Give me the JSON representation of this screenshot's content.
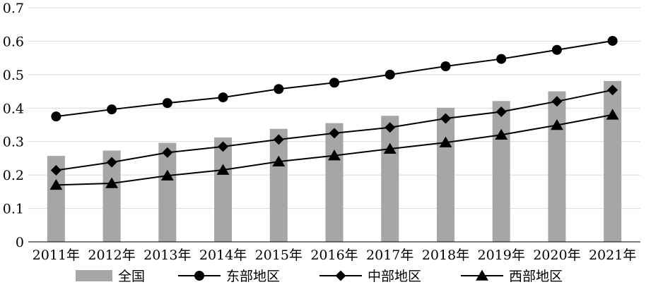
{
  "chart_data": {
    "type": "bar",
    "title": "",
    "xlabel": "",
    "ylabel": "",
    "categories": [
      "2011年",
      "2012年",
      "2013年",
      "2014年",
      "2015年",
      "2016年",
      "2017年",
      "2018年",
      "2019年",
      "2020年",
      "2021年"
    ],
    "ylim": [
      0,
      0.7
    ],
    "yticks": [
      "0",
      "0.1",
      "0.2",
      "0.3",
      "0.4",
      "0.5",
      "0.6",
      "0.7"
    ],
    "grid": true,
    "legend": "bottom",
    "series": [
      {
        "name": "全国",
        "kind": "bar",
        "marker": "none",
        "color": "#a6a6a6",
        "values": [
          0.257,
          0.273,
          0.296,
          0.312,
          0.338,
          0.355,
          0.377,
          0.401,
          0.421,
          0.45,
          0.481
        ]
      },
      {
        "name": "东部地区",
        "kind": "line",
        "marker": "circle",
        "color": "#000000",
        "values": [
          0.375,
          0.396,
          0.415,
          0.432,
          0.457,
          0.476,
          0.5,
          0.525,
          0.547,
          0.574,
          0.601
        ]
      },
      {
        "name": "中部地区",
        "kind": "line",
        "marker": "diamond",
        "color": "#000000",
        "values": [
          0.214,
          0.238,
          0.267,
          0.285,
          0.306,
          0.325,
          0.342,
          0.369,
          0.389,
          0.42,
          0.454
        ]
      },
      {
        "name": "西部地区",
        "kind": "line",
        "marker": "triangle",
        "color": "#000000",
        "values": [
          0.17,
          0.175,
          0.198,
          0.215,
          0.24,
          0.258,
          0.278,
          0.297,
          0.32,
          0.349,
          0.38
        ]
      }
    ]
  }
}
